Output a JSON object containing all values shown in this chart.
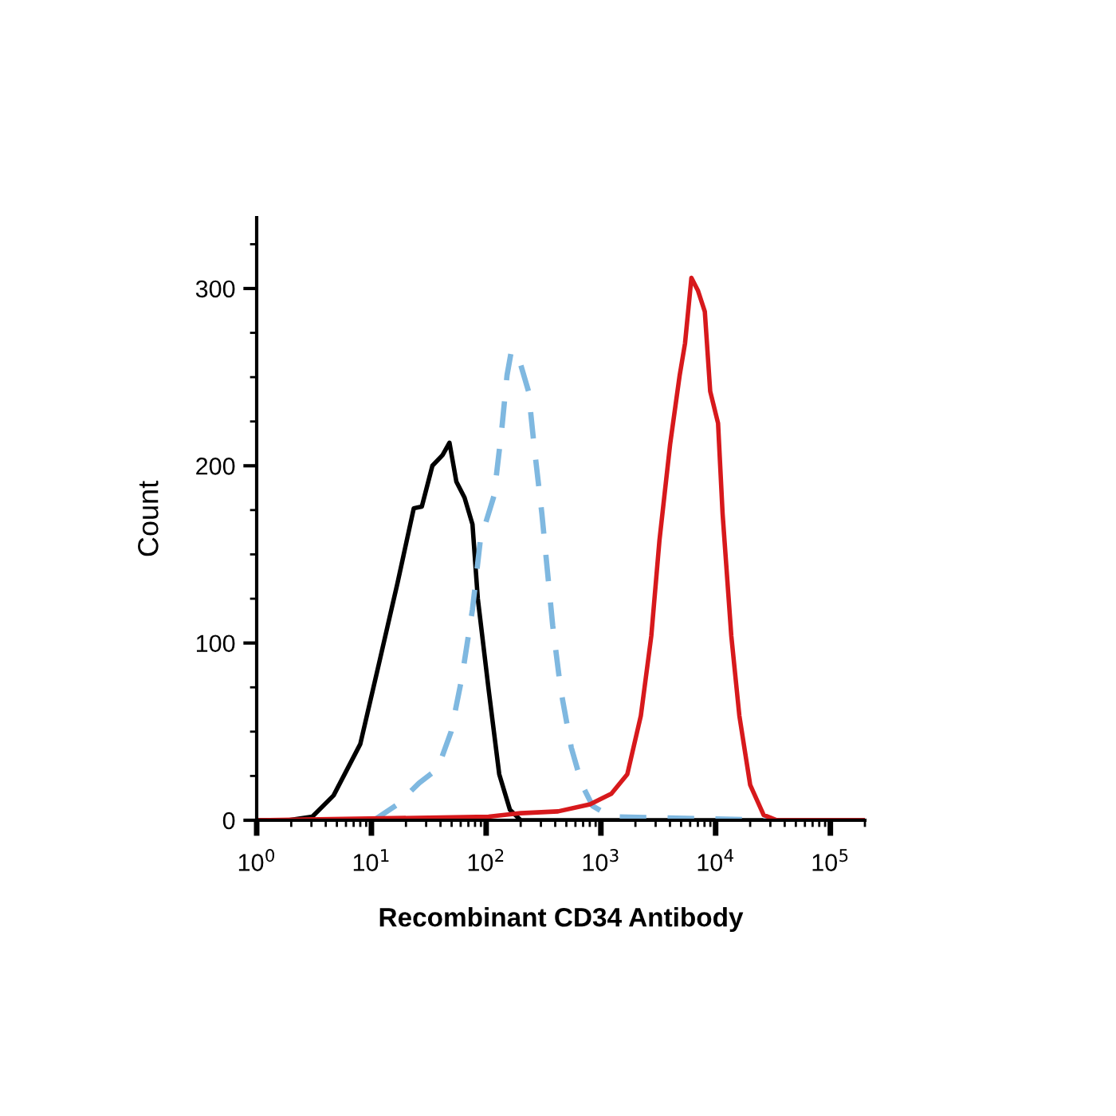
{
  "chart_data": {
    "type": "line",
    "xlabel": "Recombinant CD34 Antibody",
    "ylabel": "Count",
    "log": "x",
    "xlim": [
      1,
      200000
    ],
    "xticks": [
      {
        "value": 1,
        "label": "10$^{0}$"
      },
      {
        "value": 10,
        "label": "10$^{1}$"
      },
      {
        "value": 100,
        "label": "10$^{2}$"
      },
      {
        "value": 1000,
        "label": "10$^{3}$"
      },
      {
        "value": 10000,
        "label": "10$^{4}$"
      },
      {
        "value": 100000,
        "label": "10$^{5}$"
      }
    ],
    "ylim": [
      0,
      340
    ],
    "yticks": [
      0,
      {
        "value": 25,
        "label": null
      },
      {
        "value": 50,
        "label": null
      },
      {
        "value": 75,
        "label": null
      },
      100,
      {
        "value": 125,
        "label": null
      },
      {
        "value": 150,
        "label": null
      },
      {
        "value": 175,
        "label": null
      },
      200,
      {
        "value": 225,
        "label": null
      },
      {
        "value": 250,
        "label": null
      },
      {
        "value": 275,
        "label": null
      },
      300,
      {
        "value": 325,
        "label": null
      }
    ],
    "grid": false,
    "marker": "none",
    "series": [
      {
        "color": "#000000",
        "line_style": "solid",
        "x": [
          1,
          1.88,
          3.05,
          4.68,
          8.0,
          11.6,
          16.9,
          23.4,
          27.5,
          34,
          41.7,
          47.9,
          55,
          64.8,
          76,
          84.6,
          105,
          130,
          161,
          200,
          200000
        ],
        "values": [
          0,
          0,
          2,
          14,
          43,
          88,
          134,
          176,
          177,
          200,
          206,
          213,
          191,
          182,
          167,
          125,
          74,
          26,
          6,
          0,
          0
        ]
      },
      {
        "color": "#7fb8e0",
        "line_style": "dashed",
        "x": [
          10.5,
          16.9,
          26,
          37.8,
          49.5,
          61.3,
          76,
          89,
          117,
          137,
          152,
          166,
          200,
          234,
          261,
          306,
          380,
          446,
          552,
          684,
          849,
          1233,
          30400
        ],
        "values": [
          0,
          9,
          21,
          29,
          50,
          80,
          119,
          158,
          183,
          221,
          251,
          265,
          257,
          242,
          212,
          173,
          110,
          74,
          41,
          20,
          8,
          2,
          0
        ]
      },
      {
        "color": "#d7191c",
        "line_style": "solid",
        "x": [
          1,
          105,
          200,
          423,
          804,
          1233,
          1700,
          2230,
          2750,
          3240,
          4010,
          4860,
          5410,
          6150,
          7000,
          8050,
          8970,
          10500,
          11500,
          13700,
          16100,
          20000,
          26200,
          34300,
          200000
        ],
        "values": [
          0,
          2,
          4,
          5,
          9,
          15,
          26,
          59,
          104,
          158,
          212,
          251,
          269,
          306,
          299,
          287,
          242,
          224,
          173,
          104,
          59,
          20,
          3,
          0,
          0
        ]
      }
    ]
  }
}
